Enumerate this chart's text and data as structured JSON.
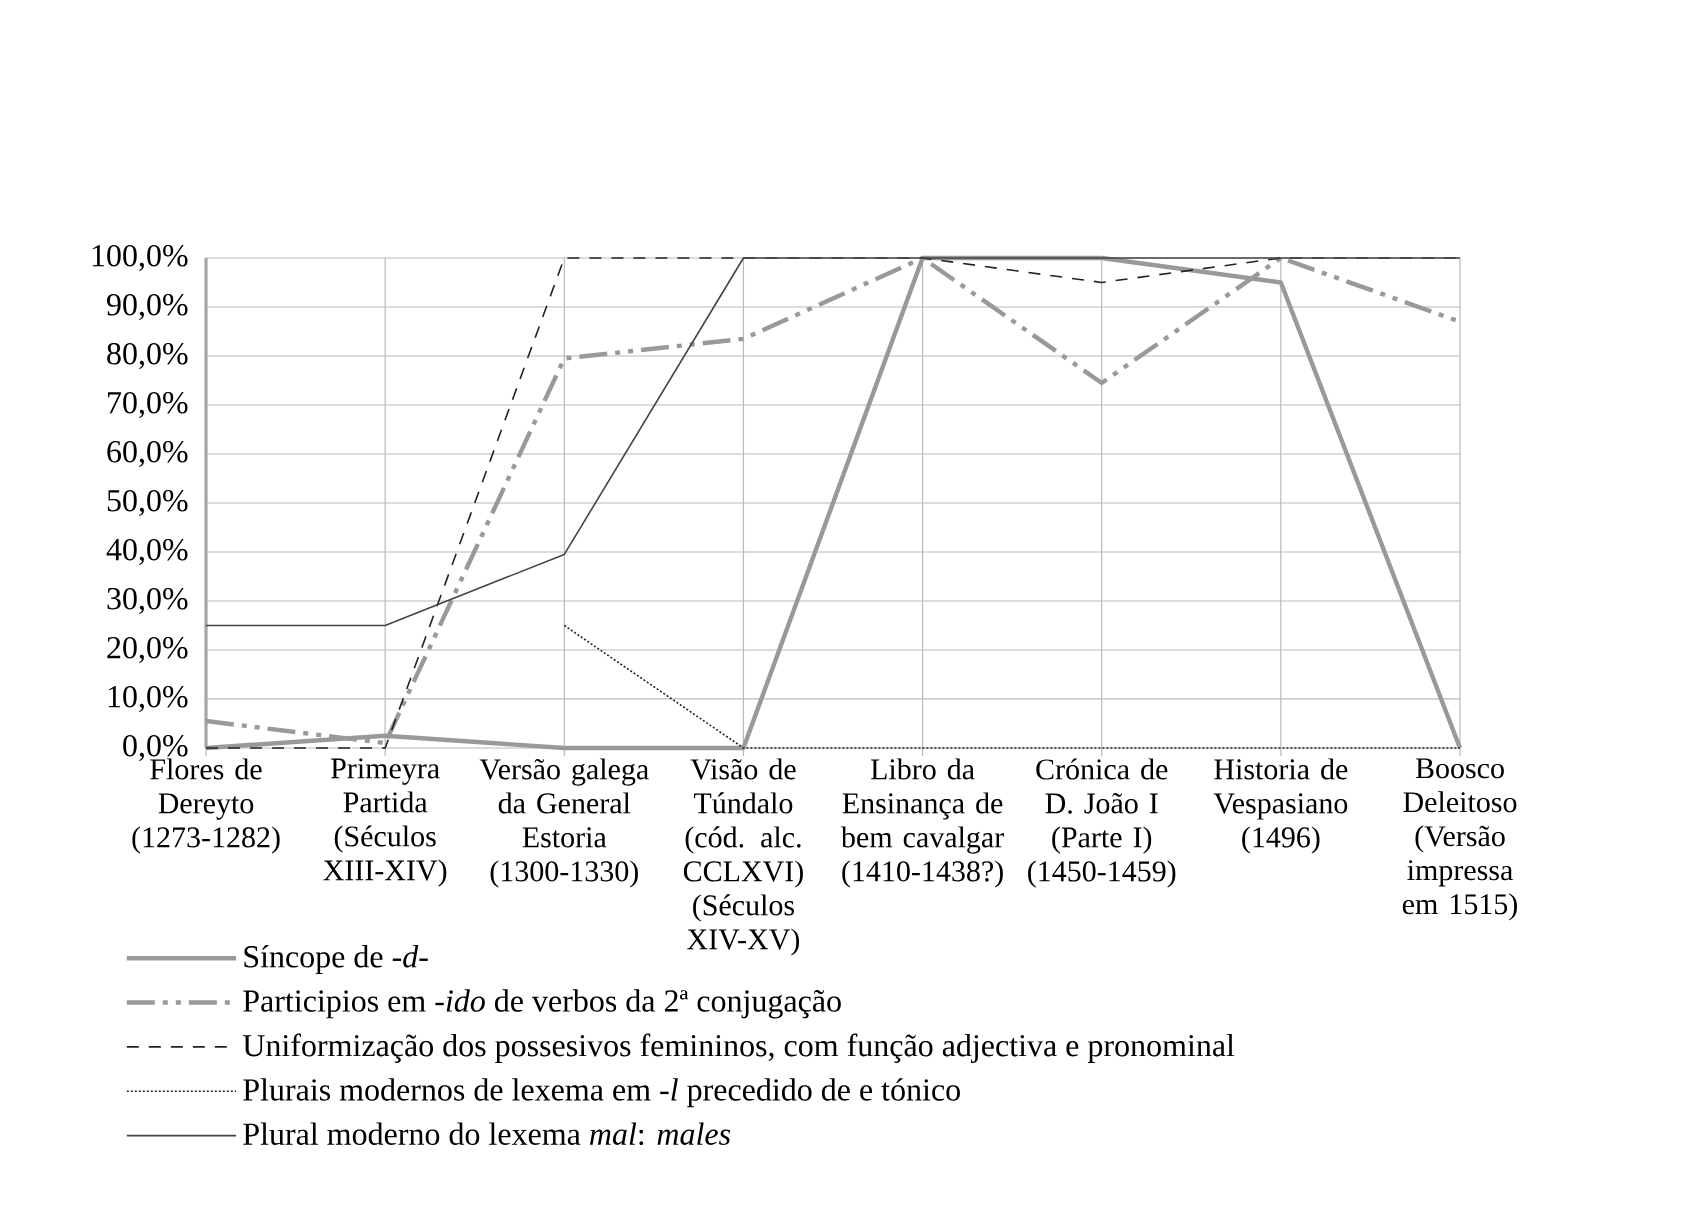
{
  "chart_data": {
    "type": "line",
    "categories": [
      "Flores de Dereyto (1273-1282)",
      "Primeyra Partida (Séculos XIII-XIV)",
      "Versão galega da General Estoria (1300-1330)",
      "Visão de Túndalo (cód. alc. CCLXVI) (Séculos XIV-XV)",
      "Libro da Ensinança de bem cavalgar (1410-1438?)",
      "Crónica de D. João I (Parte I) (1450-1459)",
      "Historia de Vespasiano (1496)",
      "Boosco Deleitoso (Versão impressa em 1515)"
    ],
    "series": [
      {
        "name": "Síncope de *-d-*",
        "color": "#999999",
        "line_style": "solid",
        "values": [
          0,
          2.5,
          0,
          0,
          100,
          100,
          95,
          0
        ]
      },
      {
        "name": "Participios em *-ido* de verbos da 2ª conjugação",
        "color": "#999999",
        "line_style": "dashdot",
        "values": [
          5.5,
          1,
          79.5,
          83.5,
          100,
          74.5,
          100,
          87
        ]
      },
      {
        "name": "Uniformização dos possesivos femininos, com função adjectiva e pronominal",
        "color": "#222222",
        "line_style": "dashed",
        "values": [
          0,
          0,
          100,
          100,
          100,
          95,
          100,
          100
        ]
      },
      {
        "name": "Plurais modernos de lexema em *-l* precedido de e tónico",
        "color": "#222222",
        "line_style": "dotted",
        "values": [
          null,
          null,
          25,
          0,
          0,
          0,
          0,
          0
        ]
      },
      {
        "name": "Plural moderno do lexema *mal*: *males*",
        "color": "#444444",
        "line_style": "solid",
        "values": [
          25,
          25,
          39.5,
          100,
          100,
          100,
          100,
          100
        ]
      }
    ],
    "ylim": [
      0,
      100
    ],
    "yticks": [
      {
        "value": 0,
        "label": "0,0%"
      },
      {
        "value": 10,
        "label": "10,0%"
      },
      {
        "value": 20,
        "label": "20,0%"
      },
      {
        "value": 30,
        "label": "30,0%"
      },
      {
        "value": 40,
        "label": "40,0%"
      },
      {
        "value": 50,
        "label": "50,0%"
      },
      {
        "value": 60,
        "label": "60,0%"
      },
      {
        "value": 70,
        "label": "70,0%"
      },
      {
        "value": 80,
        "label": "80,0%"
      },
      {
        "value": 90,
        "label": "90,0%"
      },
      {
        "value": 100,
        "label": "100,0%"
      }
    ],
    "grid": true,
    "legend": "bottom",
    "marker": "none"
  }
}
